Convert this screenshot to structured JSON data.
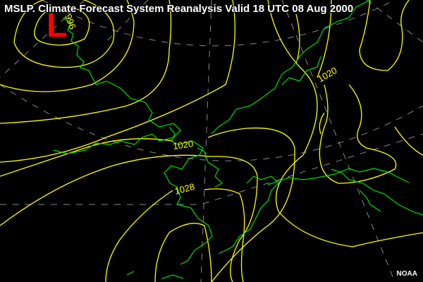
{
  "title": "MSLP. Climate Forecast System Reanalysis Valid 18 UTC 08 Aug 2000",
  "credit": "NOAA",
  "pressure_centers": [
    {
      "type": "low",
      "symbol": "L"
    }
  ],
  "isobar_labels": [
    "996",
    "1020",
    "1020",
    "1028"
  ],
  "colors": {
    "isobars": "#ffff00",
    "coastlines": "#00dd00",
    "low_center": "#ff0000",
    "graticule": "#888888",
    "background": "#000000"
  }
}
